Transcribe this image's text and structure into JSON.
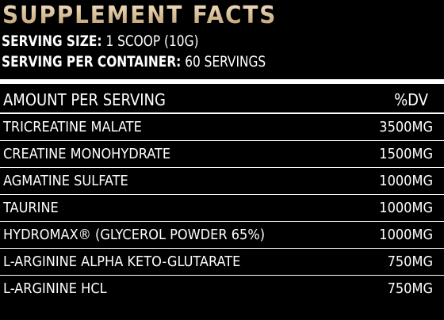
{
  "title": "SUPPLEMENT FACTS",
  "serving_size": {
    "label": "SERVING SIZE:",
    "value": "1 SCOOP (10G)"
  },
  "servings_per_container": {
    "label": "SERVING PER CONTAINER:",
    "value": "60 SERVINGS"
  },
  "header": {
    "left": "AMOUNT PER SERVING",
    "right": "%DV"
  },
  "ingredients": [
    {
      "name": "TRICREATINE MALATE",
      "amount": "3500MG"
    },
    {
      "name": "CREATINE MONOHYDRATE",
      "amount": "1500MG"
    },
    {
      "name": "AGMATINE SULFATE",
      "amount": "1000MG"
    },
    {
      "name": "TAURINE",
      "amount": "1000MG"
    },
    {
      "name": "HYDROMAX® (GLYCEROL POWDER 65%)",
      "amount": "1000MG"
    },
    {
      "name": "L-ARGININE ALPHA KETO-GLUTARATE",
      "amount": "750MG"
    },
    {
      "name": "L-ARGININE HCL",
      "amount": "750MG"
    }
  ],
  "colors": {
    "background": "#000000",
    "text": "#ffffff",
    "title_gold_light": "#f3e1c4",
    "title_gold_dark": "#b89968"
  }
}
